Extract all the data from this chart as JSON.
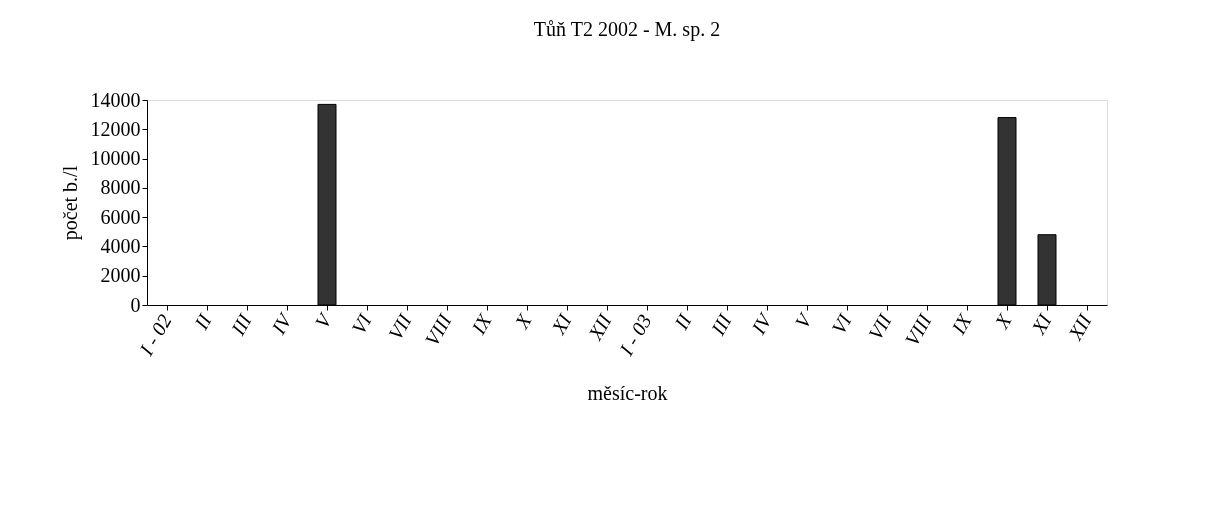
{
  "chart_data": {
    "type": "bar",
    "title": "Tůň T2 2002 - M. sp. 2",
    "xlabel": "měsíc-rok",
    "ylabel": "počet b./l",
    "categories": [
      "I - 02",
      "II",
      "III",
      "IV",
      "V",
      "VI",
      "VII",
      "VIII",
      "IX",
      "X",
      "XI",
      "XII",
      "I - 03",
      "II",
      "III",
      "IV",
      "V",
      "VI",
      "VII",
      "VIII",
      "IX",
      "X",
      "XI",
      "XII"
    ],
    "values": [
      0,
      0,
      0,
      0,
      13700,
      0,
      0,
      0,
      0,
      0,
      0,
      0,
      0,
      0,
      0,
      0,
      0,
      0,
      0,
      0,
      0,
      12800,
      4800,
      0
    ],
    "color": "#333333",
    "ylim": [
      0,
      14000
    ],
    "yticks": [
      0,
      2000,
      4000,
      6000,
      8000,
      10000,
      12000,
      14000
    ],
    "grid": false
  }
}
